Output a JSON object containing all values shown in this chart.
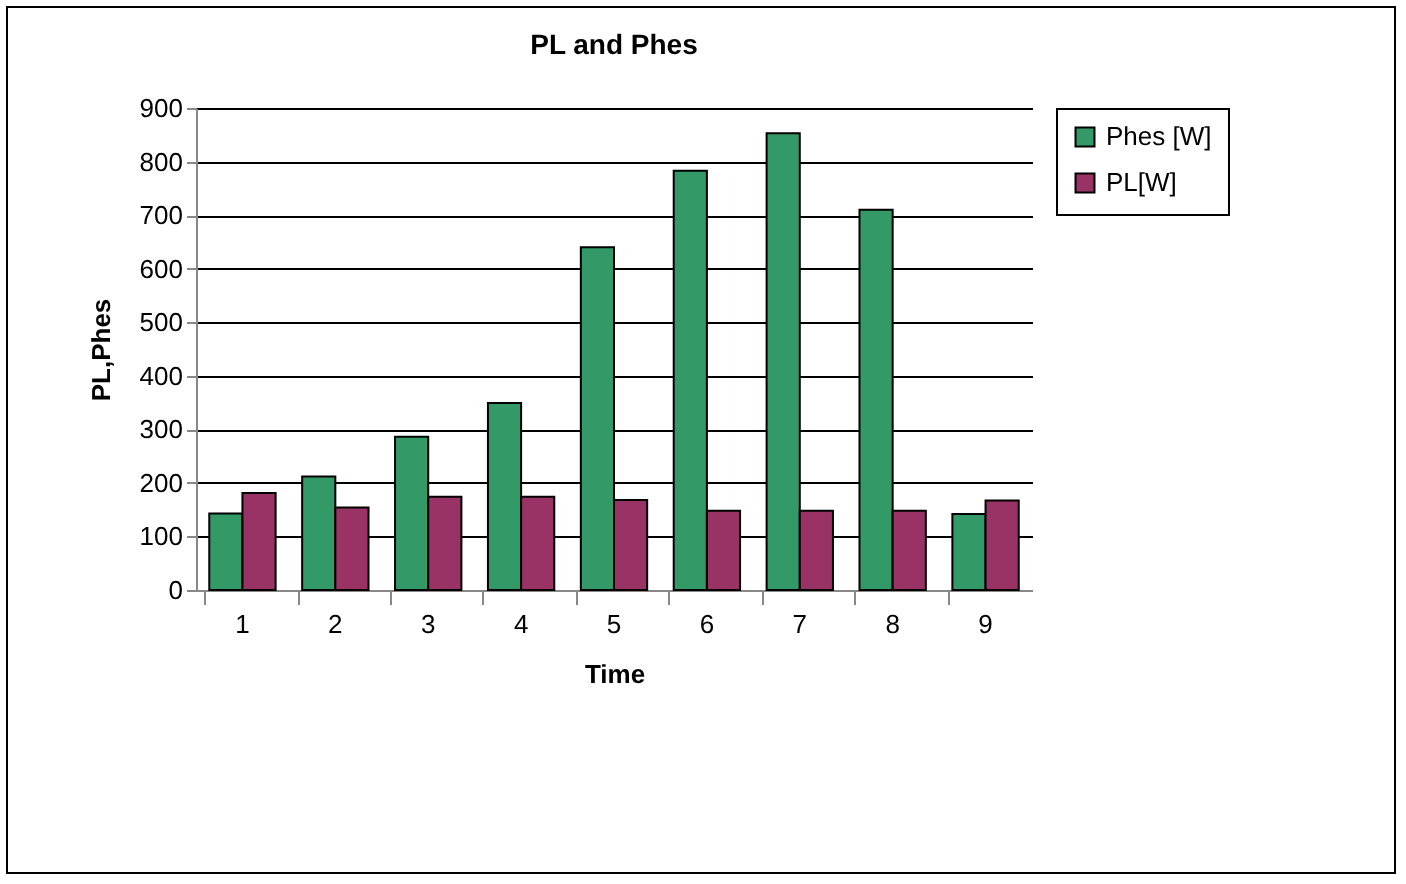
{
  "chart_data": {
    "type": "bar",
    "title": "PL and Phes",
    "xlabel": "Time",
    "ylabel": "PL,Phes",
    "categories": [
      "1",
      "2",
      "3",
      "4",
      "5",
      "6",
      "7",
      "8",
      "9"
    ],
    "series": [
      {
        "name": "Phes [W]",
        "color": "#339966",
        "values": [
          143,
          212,
          286,
          349,
          640,
          783,
          853,
          710,
          142
        ]
      },
      {
        "name": "PL[W]",
        "color": "#993366",
        "values": [
          181,
          154,
          174,
          174,
          168,
          148,
          148,
          148,
          167
        ]
      }
    ],
    "ylim": [
      0,
      900
    ],
    "yticks": [
      0,
      100,
      200,
      300,
      400,
      500,
      600,
      700,
      800,
      900
    ],
    "grid": "y",
    "legend": "right"
  }
}
